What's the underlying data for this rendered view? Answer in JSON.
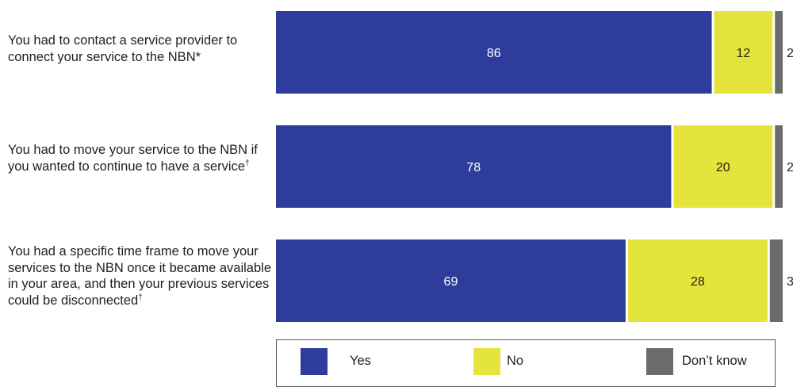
{
  "chart_data": {
    "type": "bar",
    "orientation": "horizontal",
    "stacked": true,
    "percent_scale": [
      0,
      100
    ],
    "grid": false,
    "legend_position": "bottom",
    "categories": [
      {
        "text": "You had to contact a service provider to connect your service to the NBN*",
        "mark": ""
      },
      {
        "text": "You had to move your service to the NBN if you wanted to continue to have a service",
        "mark": "†"
      },
      {
        "text": "You had a specific time frame to move your services to the NBN once it became available in your area, and then your previous services could be disconnected",
        "mark": "†"
      }
    ],
    "series": [
      {
        "name": "Yes",
        "color": "#2e3d9b",
        "values": [
          86,
          78,
          69
        ]
      },
      {
        "name": "No",
        "color": "#e5e43c",
        "values": [
          12,
          20,
          28
        ]
      },
      {
        "name": "Don’t know",
        "color": "#6b6b6b",
        "values": [
          2,
          2,
          3
        ]
      }
    ]
  }
}
